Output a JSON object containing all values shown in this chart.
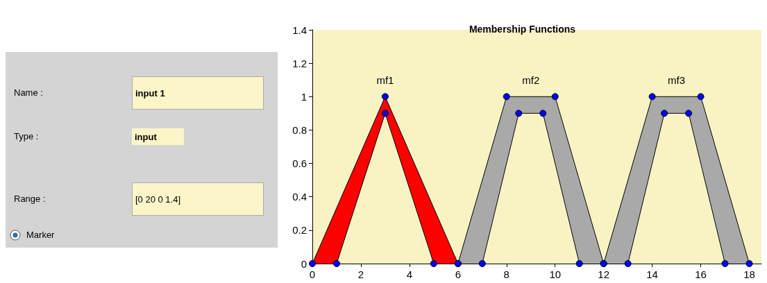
{
  "chart_data": [
    {
      "type": "other",
      "annotations": [
        "Name :",
        "input 1",
        "Type :",
        "input",
        "Range :",
        "[0 20 0 1.4]",
        "Marker"
      ]
    },
    {
      "type": "area",
      "title": "Membership Functions",
      "xlim": [
        0,
        18.5
      ],
      "xticks": [
        0,
        2,
        4,
        6,
        8,
        10,
        12,
        14,
        16,
        18
      ],
      "ylim": [
        0,
        1.4
      ],
      "yticks": [
        0,
        0.2,
        0.4,
        0.6,
        0.8,
        1,
        1.2,
        1.4
      ],
      "grid": false,
      "marker": "circle",
      "line_style": "solid",
      "annotations": [
        "mf1",
        "mf2",
        "mf3"
      ],
      "series": [
        {
          "color": "#ff0000",
          "x": [
            0,
            3,
            6
          ],
          "values": [
            0,
            1,
            0
          ]
        },
        {
          "color": "#f9f3c4",
          "x": [
            1,
            3,
            5
          ],
          "values": [
            0,
            0.9,
            0
          ]
        },
        {
          "color": "#a9a9a9",
          "x": [
            6,
            8,
            10,
            12
          ],
          "values": [
            0,
            1,
            1,
            0
          ]
        },
        {
          "color": "#f9f3c4",
          "x": [
            7,
            8.5,
            9.5,
            11
          ],
          "values": [
            0,
            0.9,
            0.9,
            0
          ]
        },
        {
          "color": "#a9a9a9",
          "x": [
            12,
            14,
            16,
            18
          ],
          "values": [
            0,
            1,
            1,
            0
          ]
        },
        {
          "color": "#f9f3c4",
          "x": [
            13,
            14.5,
            15.5,
            17
          ],
          "values": [
            0,
            0.9,
            0.9,
            0
          ]
        }
      ]
    }
  ]
}
